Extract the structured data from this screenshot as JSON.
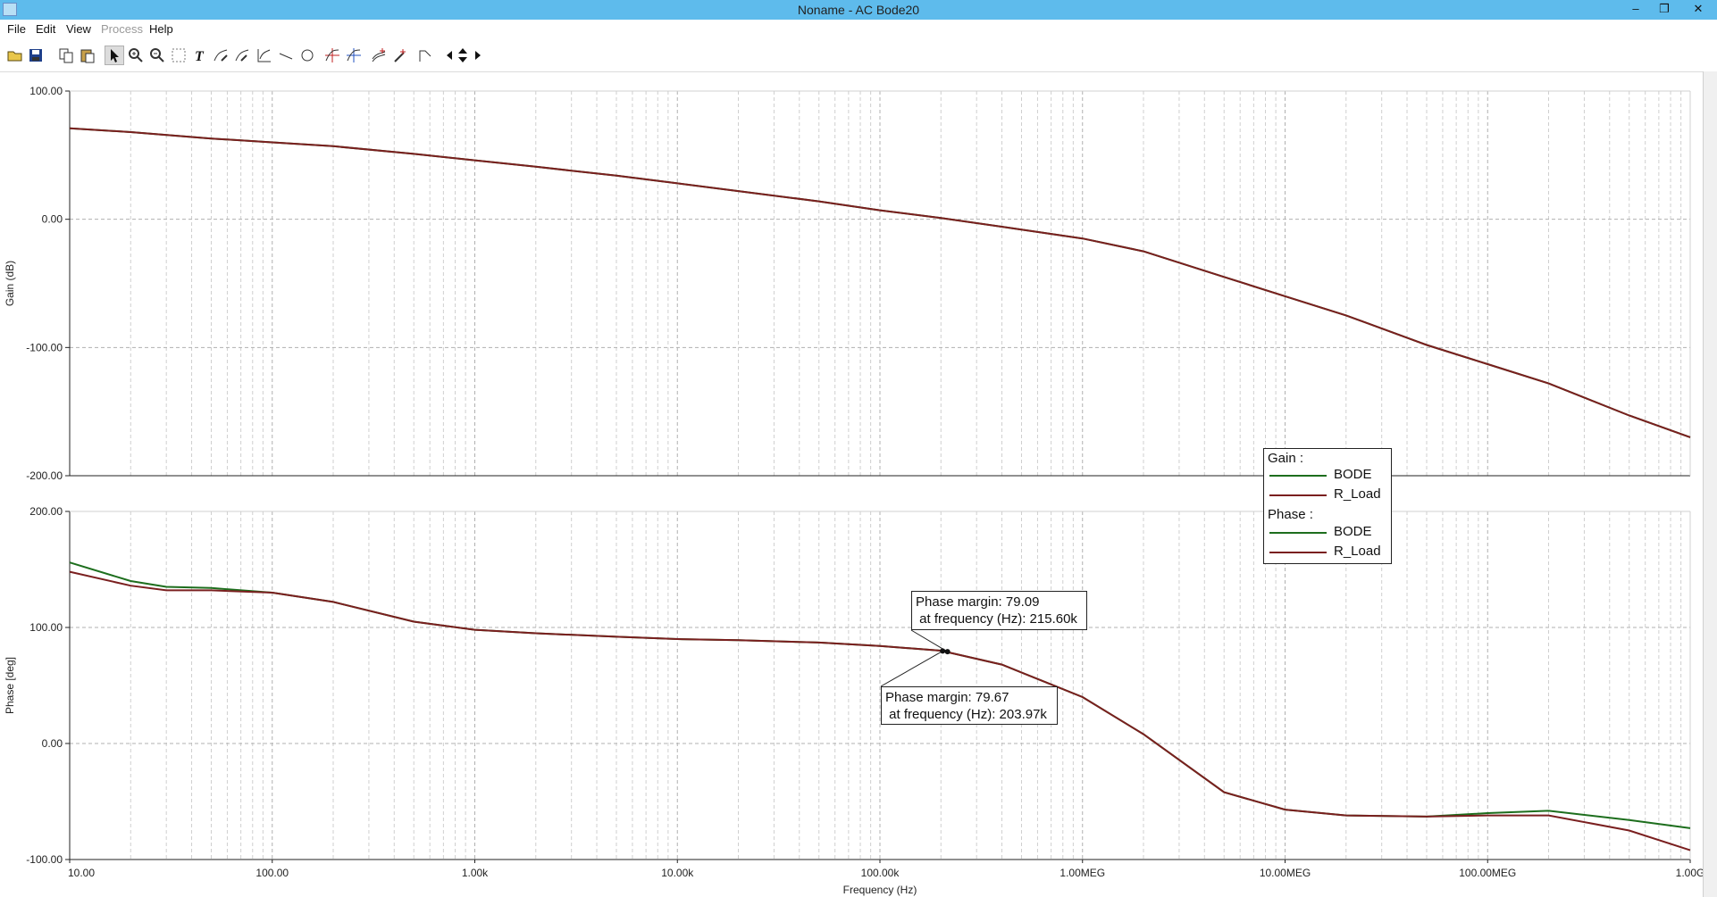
{
  "window": {
    "title": "Noname - AC Bode20",
    "minimize_icon": "minimize-icon",
    "restore_icon": "restore-icon",
    "close_icon": "close-icon",
    "minimize_glyph": "–",
    "restore_glyph": "❐",
    "close_glyph": "✕"
  },
  "menu": [
    {
      "label": "File",
      "enabled": true
    },
    {
      "label": "Edit",
      "enabled": true
    },
    {
      "label": "View",
      "enabled": true
    },
    {
      "label": "Process",
      "enabled": false
    },
    {
      "label": "Help",
      "enabled": true
    }
  ],
  "toolbar": [
    "open-folder-icon",
    "save-icon",
    "copy-icon",
    "paste-icon",
    "pointer-icon",
    "zoom-in-icon",
    "zoom-out-icon",
    "grid-select-icon",
    "text-icon",
    "edit-curve-icon",
    "edit-curve-2-icon",
    "axis-icon",
    "line-icon",
    "circle-icon",
    "cursor-a-icon",
    "cursor-b-icon",
    "add-marker-icon",
    "pick-icon",
    "corner-icon",
    "left-arrow-icon",
    "updown-arrow-icon",
    "right-arrow-icon"
  ],
  "chart_data": [
    {
      "type": "line",
      "title": "",
      "xlabel": "Frequency (Hz)",
      "ylabel": "Gain (dB)",
      "xscale": "log",
      "xlim": [
        10,
        1000000000
      ],
      "ylim": [
        -200,
        100
      ],
      "yticks": [
        "100.00",
        "0.00",
        "-100.00",
        "-200.00"
      ],
      "grid": true,
      "series": [
        {
          "name": "BODE",
          "color": "#1d6e1d",
          "x": [
            10,
            20,
            50,
            100,
            200,
            500,
            1000,
            2000,
            5000,
            10000,
            20000,
            50000,
            100000,
            200000,
            500000,
            1000000,
            2000000,
            5000000,
            10000000,
            20000000,
            50000000,
            100000000,
            200000000,
            500000000,
            1000000000
          ],
          "y": [
            71,
            68,
            63,
            60,
            57,
            51,
            46,
            41,
            34,
            28,
            22,
            14,
            7,
            1,
            -8,
            -15,
            -25,
            -45,
            -60,
            -75,
            -98,
            -113,
            -128,
            -153,
            -170
          ]
        },
        {
          "name": "R_Load",
          "color": "#7a1f1f",
          "x": [
            10,
            20,
            50,
            100,
            200,
            500,
            1000,
            2000,
            5000,
            10000,
            20000,
            50000,
            100000,
            200000,
            500000,
            1000000,
            2000000,
            5000000,
            10000000,
            20000000,
            50000000,
            100000000,
            200000000,
            500000000,
            1000000000
          ],
          "y": [
            71,
            68,
            63,
            60,
            57,
            51,
            46,
            41,
            34,
            28,
            22,
            14,
            7,
            1,
            -8,
            -15,
            -25,
            -45,
            -60,
            -75,
            -98,
            -113,
            -128,
            -153,
            -170
          ]
        }
      ]
    },
    {
      "type": "line",
      "title": "",
      "xlabel": "Frequency (Hz)",
      "ylabel": "Phase [deg]",
      "xscale": "log",
      "xlim": [
        10,
        1000000000
      ],
      "ylim": [
        -100,
        200
      ],
      "yticks": [
        "200.00",
        "100.00",
        "0.00",
        "-100.00"
      ],
      "xticks": [
        "10.00",
        "100.00",
        "1.00k",
        "10.00k",
        "100.00k",
        "1.00MEG",
        "10.00MEG",
        "100.00MEG",
        "1.00G"
      ],
      "grid": true,
      "series": [
        {
          "name": "BODE",
          "color": "#1d6e1d",
          "x": [
            10,
            20,
            30,
            50,
            100,
            200,
            500,
            1000,
            2000,
            5000,
            10000,
            20000,
            50000,
            100000,
            200000,
            400000,
            1000000,
            2000000,
            5000000,
            10000000,
            20000000,
            50000000,
            100000000,
            200000000,
            500000000,
            1000000000
          ],
          "y": [
            156,
            140,
            135,
            134,
            130,
            122,
            105,
            98,
            95,
            92,
            90,
            89,
            87,
            84,
            80,
            68,
            40,
            8,
            -42,
            -57,
            -62,
            -63,
            -60,
            -58,
            -66,
            -73
          ]
        },
        {
          "name": "R_Load",
          "color": "#7a1f1f",
          "x": [
            10,
            20,
            30,
            50,
            100,
            200,
            500,
            1000,
            2000,
            5000,
            10000,
            20000,
            50000,
            100000,
            200000,
            400000,
            1000000,
            2000000,
            5000000,
            10000000,
            20000000,
            50000000,
            100000000,
            200000000,
            500000000,
            1000000000
          ],
          "y": [
            148,
            136,
            132,
            132,
            130,
            122,
            105,
            98,
            95,
            92,
            90,
            89,
            87,
            84,
            80,
            68,
            40,
            8,
            -42,
            -57,
            -62,
            -63,
            -62,
            -62,
            -75,
            -92
          ]
        }
      ]
    }
  ],
  "legend": {
    "gain_header": "Gain :",
    "phase_header": "Phase :",
    "gain_entries": [
      {
        "name": "BODE",
        "color": "#1d6e1d"
      },
      {
        "name": "R_Load",
        "color": "#7a1f1f"
      }
    ],
    "phase_entries": [
      {
        "name": "BODE",
        "color": "#1d6e1d"
      },
      {
        "name": "R_Load",
        "color": "#7a1f1f"
      }
    ]
  },
  "annotations": [
    {
      "text": "Phase margin: 79.09\n at frequency (Hz): 215.60k",
      "x": 215600,
      "y": 79.09
    },
    {
      "text": "Phase margin: 79.67\n at frequency (Hz): 203.97k",
      "x": 203970,
      "y": 79.67
    }
  ]
}
